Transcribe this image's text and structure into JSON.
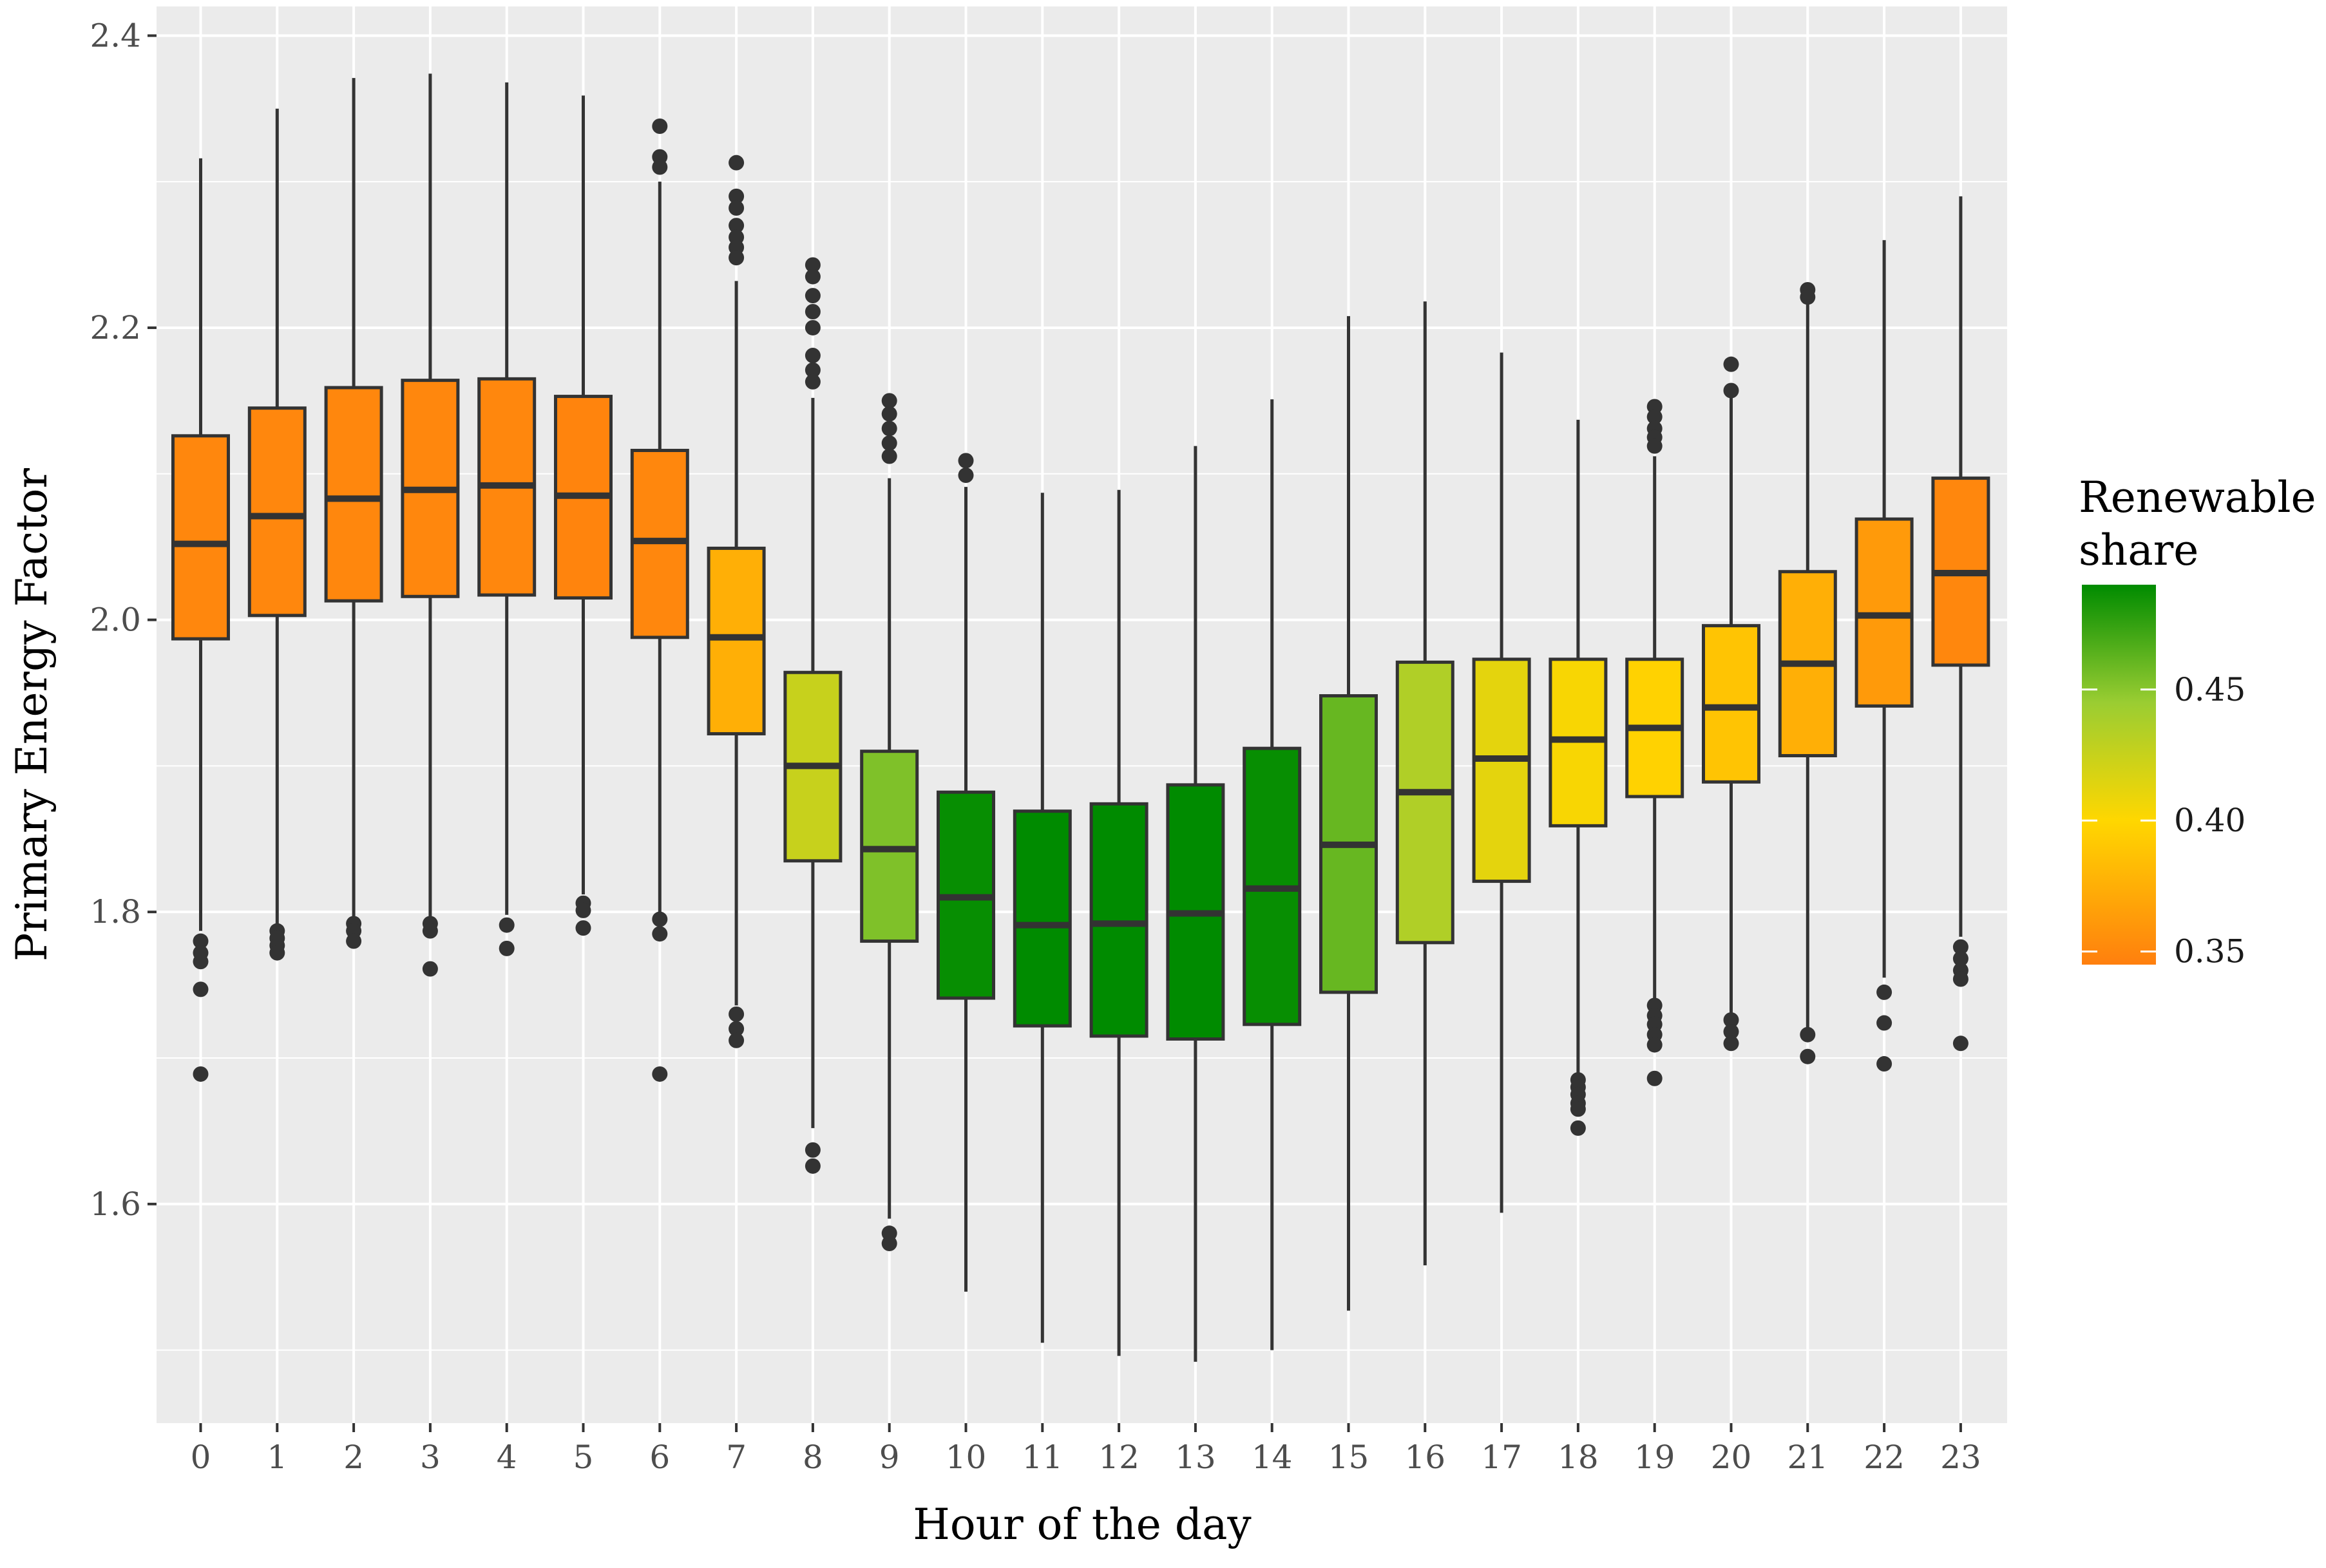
{
  "chart_data": {
    "type": "boxplot",
    "xlabel": "Hour of the day",
    "ylabel": "Primary Energy Factor",
    "ylim": [
      1.45,
      2.42
    ],
    "yticks": [
      1.6,
      1.8,
      2.0,
      2.2,
      2.4
    ],
    "ytick_labels": [
      "1.6",
      "1.8",
      "2.0",
      "2.2",
      "2.4"
    ],
    "grid": true,
    "legend": {
      "title_lines": [
        "Renewable",
        "share"
      ],
      "position": "right",
      "range": [
        0.345,
        0.49
      ],
      "ticks": [
        0.35,
        0.4,
        0.45
      ],
      "tick_labels": [
        "0.35",
        "0.40",
        "0.45"
      ],
      "color_stops": [
        {
          "value": 0.345,
          "color": "#FF7F0E"
        },
        {
          "value": 0.4,
          "color": "#FFD700"
        },
        {
          "value": 0.445,
          "color": "#9ACD32"
        },
        {
          "value": 0.49,
          "color": "#008B00"
        }
      ]
    },
    "categories": [
      "0",
      "1",
      "2",
      "3",
      "4",
      "5",
      "6",
      "7",
      "8",
      "9",
      "10",
      "11",
      "12",
      "13",
      "14",
      "15",
      "16",
      "17",
      "18",
      "19",
      "20",
      "21",
      "22",
      "23"
    ],
    "boxes": [
      {
        "hour": "0",
        "whislo": 1.787,
        "q1": 1.987,
        "med": 2.052,
        "q3": 2.126,
        "whishi": 2.316,
        "share": 0.35,
        "fliers": [
          1.78,
          1.772,
          1.766,
          1.747,
          1.689
        ]
      },
      {
        "hour": "1",
        "whislo": 1.791,
        "q1": 2.003,
        "med": 2.071,
        "q3": 2.145,
        "whishi": 2.35,
        "share": 0.35,
        "fliers": [
          1.787,
          1.782,
          1.777,
          1.772
        ]
      },
      {
        "hour": "2",
        "whislo": 1.796,
        "q1": 2.013,
        "med": 2.083,
        "q3": 2.159,
        "whishi": 2.371,
        "share": 0.35,
        "fliers": [
          1.792,
          1.787,
          1.78
        ]
      },
      {
        "hour": "3",
        "whislo": 1.797,
        "q1": 2.016,
        "med": 2.089,
        "q3": 2.164,
        "whishi": 2.374,
        "share": 0.35,
        "fliers": [
          1.792,
          1.787,
          1.761
        ]
      },
      {
        "hour": "4",
        "whislo": 1.798,
        "q1": 2.017,
        "med": 2.092,
        "q3": 2.165,
        "whishi": 2.368,
        "share": 0.35,
        "fliers": [
          1.791,
          1.775
        ]
      },
      {
        "hour": "5",
        "whislo": 1.812,
        "q1": 2.015,
        "med": 2.085,
        "q3": 2.153,
        "whishi": 2.359,
        "share": 0.348,
        "fliers": [
          1.806,
          1.801,
          1.789
        ]
      },
      {
        "hour": "6",
        "whislo": 1.8,
        "q1": 1.988,
        "med": 2.054,
        "q3": 2.116,
        "whishi": 2.3,
        "share": 0.35,
        "fliers": [
          2.338,
          2.317,
          2.31,
          1.795,
          1.785,
          1.689
        ]
      },
      {
        "hour": "7",
        "whislo": 1.736,
        "q1": 1.922,
        "med": 1.988,
        "q3": 2.049,
        "whishi": 2.232,
        "share": 0.375,
        "fliers": [
          2.313,
          2.29,
          2.282,
          2.27,
          2.262,
          2.255,
          2.248,
          1.73,
          1.72,
          1.712
        ]
      },
      {
        "hour": "8",
        "whislo": 1.652,
        "q1": 1.835,
        "med": 1.9,
        "q3": 1.964,
        "whishi": 2.152,
        "share": 0.425,
        "fliers": [
          2.243,
          2.235,
          2.222,
          2.211,
          2.2,
          2.181,
          2.171,
          2.163,
          1.637,
          1.626
        ]
      },
      {
        "hour": "9",
        "whislo": 1.59,
        "q1": 1.78,
        "med": 1.843,
        "q3": 1.91,
        "whishi": 2.097,
        "share": 0.453,
        "fliers": [
          2.15,
          2.141,
          2.131,
          2.121,
          2.112,
          1.58,
          1.573
        ]
      },
      {
        "hour": "10",
        "whislo": 1.54,
        "q1": 1.741,
        "med": 1.81,
        "q3": 1.882,
        "whishi": 2.091,
        "share": 0.488,
        "fliers": [
          2.109,
          2.099
        ]
      },
      {
        "hour": "11",
        "whislo": 1.505,
        "q1": 1.722,
        "med": 1.791,
        "q3": 1.869,
        "whishi": 2.087,
        "share": 0.491,
        "fliers": []
      },
      {
        "hour": "12",
        "whislo": 1.496,
        "q1": 1.715,
        "med": 1.792,
        "q3": 1.874,
        "whishi": 2.089,
        "share": 0.491,
        "fliers": []
      },
      {
        "hour": "13",
        "whislo": 1.492,
        "q1": 1.713,
        "med": 1.799,
        "q3": 1.887,
        "whishi": 2.119,
        "share": 0.491,
        "fliers": []
      },
      {
        "hour": "14",
        "whislo": 1.5,
        "q1": 1.723,
        "med": 1.816,
        "q3": 1.912,
        "whishi": 2.151,
        "share": 0.488,
        "fliers": []
      },
      {
        "hour": "15",
        "whislo": 1.527,
        "q1": 1.745,
        "med": 1.846,
        "q3": 1.948,
        "whishi": 2.208,
        "share": 0.46,
        "fliers": []
      },
      {
        "hour": "16",
        "whislo": 1.558,
        "q1": 1.779,
        "med": 1.882,
        "q3": 1.971,
        "whishi": 2.218,
        "share": 0.435,
        "fliers": []
      },
      {
        "hour": "17",
        "whislo": 1.594,
        "q1": 1.821,
        "med": 1.905,
        "q3": 1.973,
        "whishi": 2.183,
        "share": 0.412,
        "fliers": []
      },
      {
        "hour": "18",
        "whislo": 1.69,
        "q1": 1.859,
        "med": 1.918,
        "q3": 1.973,
        "whishi": 2.137,
        "share": 0.403,
        "fliers": [
          1.685,
          1.68,
          1.675,
          1.669,
          1.665,
          1.652
        ]
      },
      {
        "hour": "19",
        "whislo": 1.737,
        "q1": 1.879,
        "med": 1.926,
        "q3": 1.973,
        "whishi": 2.112,
        "share": 0.397,
        "fliers": [
          2.146,
          2.139,
          2.131,
          2.125,
          2.119,
          1.736,
          1.729,
          1.723,
          1.716,
          1.709,
          1.686
        ]
      },
      {
        "hour": "20",
        "whislo": 1.728,
        "q1": 1.889,
        "med": 1.94,
        "q3": 1.996,
        "whishi": 2.152,
        "share": 0.388,
        "fliers": [
          2.175,
          2.157,
          1.726,
          1.718,
          1.71
        ]
      },
      {
        "hour": "21",
        "whislo": 1.72,
        "q1": 1.907,
        "med": 1.97,
        "q3": 2.033,
        "whishi": 2.219,
        "share": 0.375,
        "fliers": [
          2.226,
          2.221,
          1.716,
          1.701
        ]
      },
      {
        "hour": "22",
        "whislo": 1.755,
        "q1": 1.941,
        "med": 2.003,
        "q3": 2.069,
        "whishi": 2.26,
        "share": 0.362,
        "fliers": [
          1.745,
          1.724,
          1.696
        ]
      },
      {
        "hour": "23",
        "whislo": 1.783,
        "q1": 1.969,
        "med": 2.032,
        "q3": 2.097,
        "whishi": 2.29,
        "share": 0.35,
        "fliers": [
          1.776,
          1.768,
          1.76,
          1.754,
          1.71
        ]
      }
    ]
  }
}
